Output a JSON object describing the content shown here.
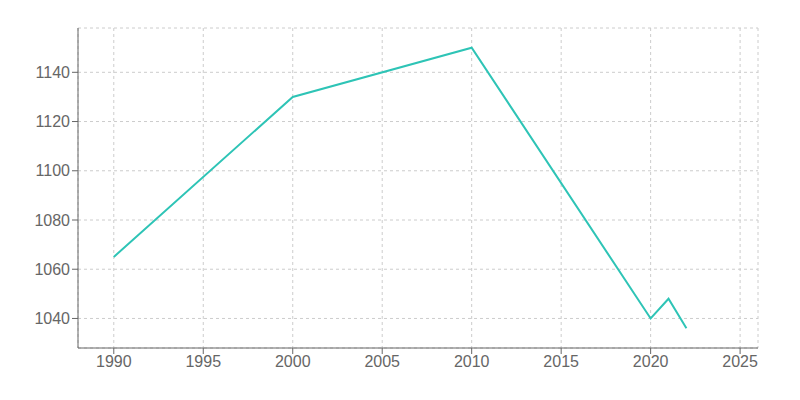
{
  "chart_data": {
    "type": "line",
    "x": [
      1990,
      2000,
      2010,
      2020,
      2021,
      2022
    ],
    "values": [
      1065,
      1130,
      1150,
      1040,
      1048,
      1036
    ],
    "color": "#2ec4b6",
    "xlim": [
      1988,
      2026
    ],
    "ylim": [
      1028,
      1158
    ],
    "xticks": [
      1990,
      1995,
      2000,
      2005,
      2010,
      2015,
      2020,
      2025
    ],
    "yticks": [
      1040,
      1060,
      1080,
      1100,
      1120,
      1140
    ],
    "grid": true
  }
}
